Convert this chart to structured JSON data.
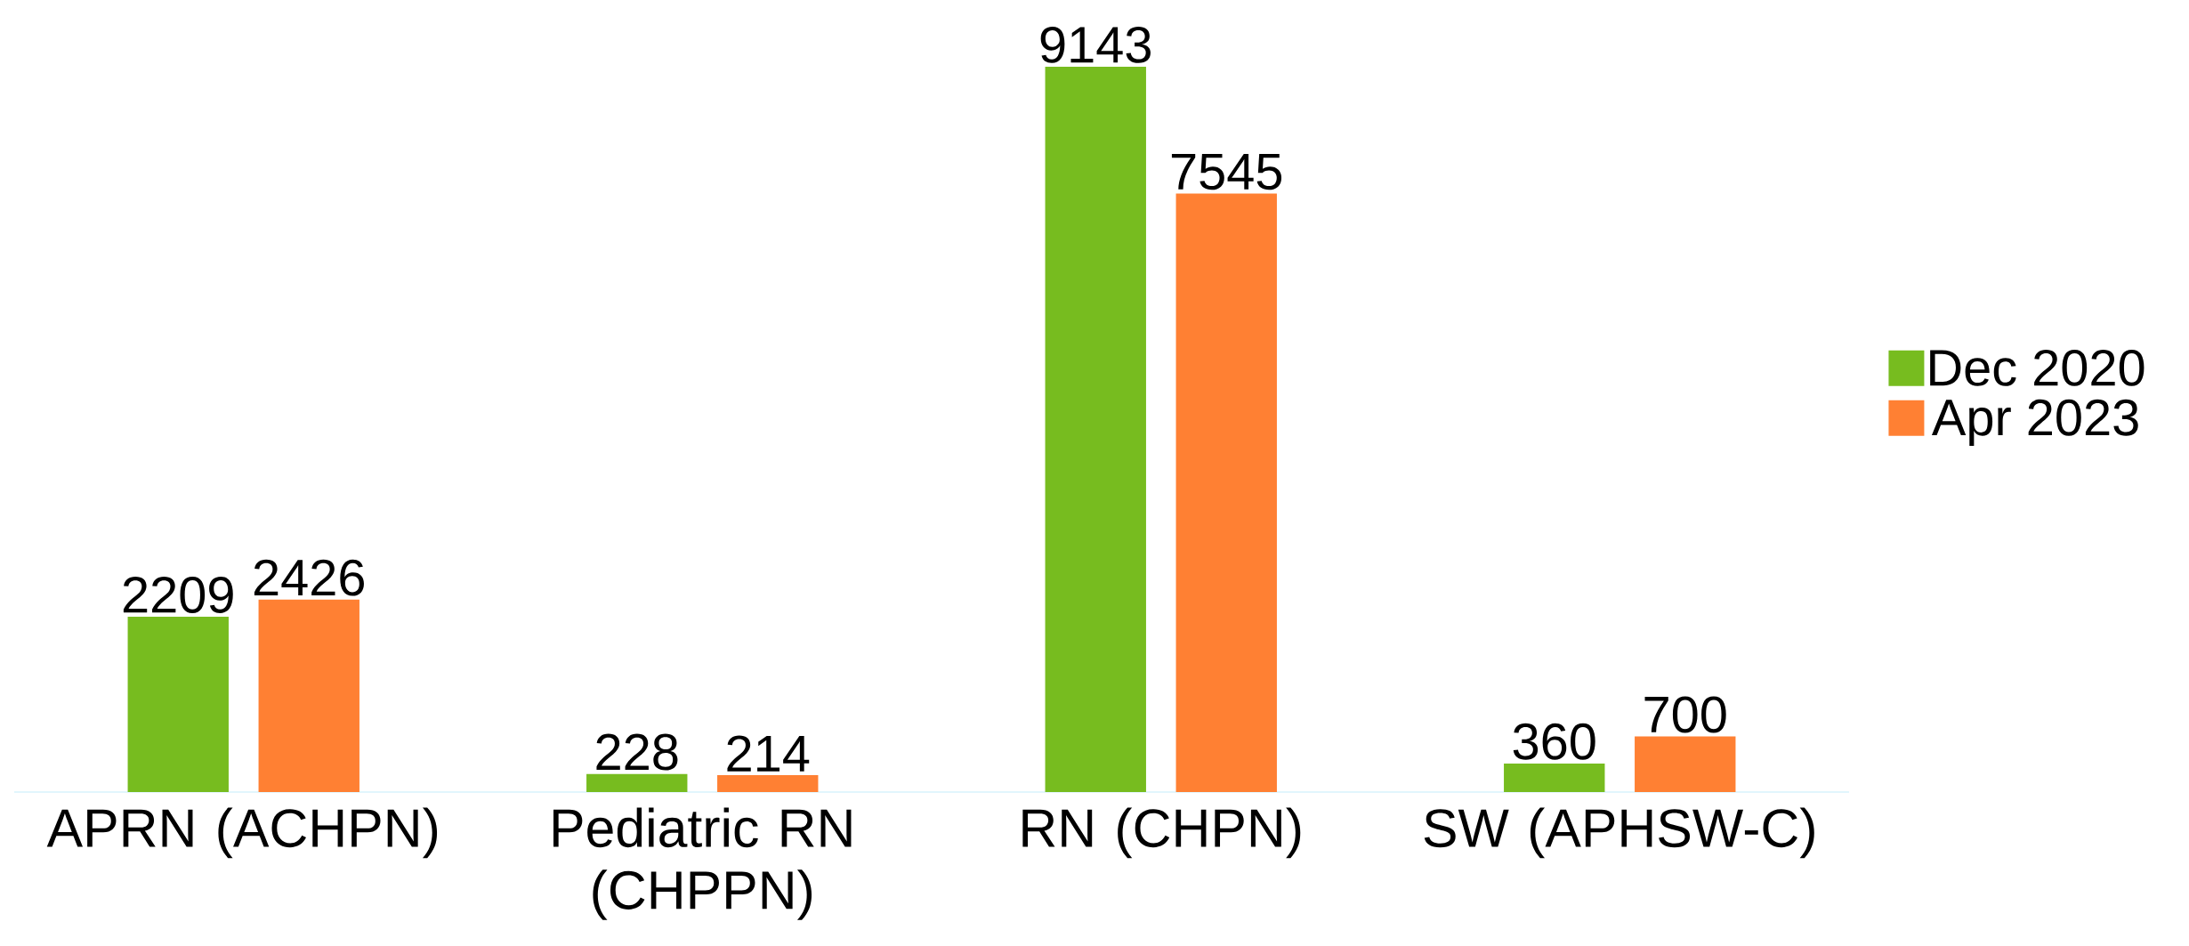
{
  "chart_data": {
    "type": "bar",
    "categories": [
      "APRN (ACHPN)",
      "Pediatric RN (CHPPN)",
      "RN (CHPN)",
      "SW (APHSW-C)"
    ],
    "series": [
      {
        "name": "Dec 2020",
        "color": "#77bc1f",
        "values": [
          2209,
          228,
          9143,
          360
        ]
      },
      {
        "name": "Apr 2023",
        "color": "#ff8033",
        "values": [
          2426,
          214,
          7545,
          700
        ]
      }
    ],
    "data_labels": true,
    "legend": "right"
  }
}
